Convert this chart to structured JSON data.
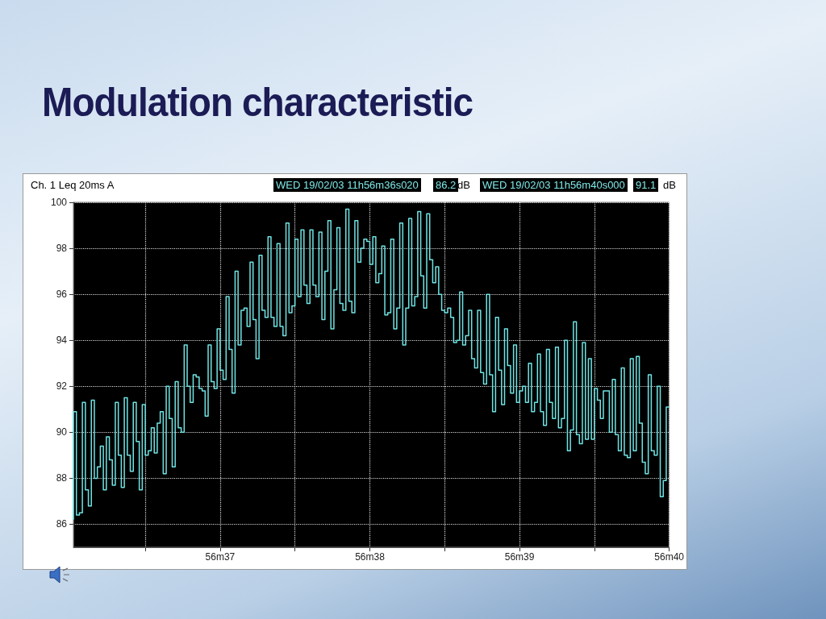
{
  "chart_data": {
    "type": "step",
    "title": "Modulation characteristic",
    "annotations": [
      "Ch.  1  Leq 20ms  A",
      "WED 19/02/03 11h56m36s020",
      "86.2",
      "dB",
      "WED 19/02/03 11h56m40s000",
      "91.1",
      "dB"
    ],
    "categories": [
      null,
      null,
      null,
      null,
      null,
      null,
      null,
      null,
      null,
      null,
      null,
      null,
      null,
      null,
      null,
      null,
      null,
      null,
      null,
      null,
      null,
      null,
      null,
      null,
      null,
      null,
      null,
      null,
      null,
      null,
      null,
      null,
      null,
      null,
      null,
      null,
      null,
      null,
      null,
      null,
      null,
      null,
      null,
      null,
      null,
      null,
      null,
      null,
      null,
      "56m37",
      null,
      null,
      null,
      null,
      null,
      null,
      null,
      null,
      null,
      null,
      null,
      null,
      null,
      null,
      null,
      null,
      null,
      null,
      null,
      null,
      null,
      null,
      null,
      null,
      null,
      null,
      null,
      null,
      null,
      null,
      null,
      null,
      null,
      null,
      null,
      null,
      null,
      null,
      null,
      null,
      null,
      null,
      null,
      null,
      null,
      null,
      null,
      null,
      null,
      "56m38",
      null,
      null,
      null,
      null,
      null,
      null,
      null,
      null,
      null,
      null,
      null,
      null,
      null,
      null,
      null,
      null,
      null,
      null,
      null,
      null,
      null,
      null,
      null,
      null,
      null,
      null,
      null,
      null,
      null,
      null,
      null,
      null,
      null,
      null,
      null,
      null,
      null,
      null,
      null,
      null,
      null,
      null,
      null,
      null,
      null,
      null,
      null,
      null,
      null,
      "56m39",
      null,
      null,
      null,
      null,
      null,
      null,
      null,
      null,
      null,
      null,
      null,
      null,
      null,
      null,
      null,
      null,
      null,
      null,
      null,
      null,
      null,
      null,
      null,
      null,
      null,
      null,
      null,
      null,
      null,
      null,
      null,
      null,
      null,
      null,
      null,
      null,
      null,
      null,
      null,
      null,
      null,
      null,
      null,
      null,
      null,
      null,
      null,
      null,
      null,
      "56m40"
    ],
    "series": [
      {
        "color": "#6fe3e3",
        "values": [
          86.2,
          90.9,
          86.4,
          86.5,
          91.3,
          87.5,
          86.8,
          91.4,
          88.0,
          88.5,
          89.4,
          87.5,
          89.8,
          88.8,
          87.7,
          91.3,
          89.0,
          87.6,
          91.5,
          89.0,
          88.3,
          91.3,
          89.6,
          87.5,
          91.2,
          89.0,
          89.2,
          90.2,
          89.1,
          90.4,
          90.9,
          88.2,
          92.0,
          90.6,
          88.5,
          92.2,
          90.2,
          90.0,
          93.8,
          92.0,
          91.3,
          92.5,
          92.4,
          91.9,
          91.8,
          90.7,
          93.8,
          92.2,
          91.9,
          94.5,
          92.7,
          92.3,
          95.9,
          93.6,
          91.7,
          97.0,
          93.8,
          95.3,
          95.4,
          94.6,
          97.4,
          94.9,
          93.2,
          97.7,
          95.3,
          95.0,
          98.5,
          95.0,
          94.6,
          98.2,
          94.6,
          94.2,
          99.1,
          95.2,
          95.5,
          98.4,
          95.9,
          98.8,
          96.4,
          95.6,
          98.8,
          96.4,
          95.9,
          98.7,
          94.9,
          97.0,
          99.2,
          94.5,
          96.2,
          98.9,
          95.6,
          95.3,
          99.7,
          95.7,
          95.2,
          99.2,
          97.4,
          98.0,
          98.4,
          98.3,
          97.3,
          98.5,
          96.5,
          96.9,
          98.1,
          95.1,
          95.2,
          98.4,
          94.5,
          95.4,
          99.1,
          93.8,
          95.4,
          99.3,
          95.5,
          95.9,
          99.6,
          96.8,
          95.4,
          99.5,
          97.5,
          96.5,
          97.2,
          96.0,
          95.3,
          95.2,
          95.4,
          95.0,
          93.9,
          94.0,
          96.1,
          93.8,
          94.2,
          95.3,
          93.2,
          92.8,
          95.3,
          92.6,
          92.1,
          96.0,
          92.5,
          90.9,
          95.0,
          92.7,
          91.2,
          94.5,
          92.9,
          91.7,
          93.8,
          91.3,
          91.8,
          92.0,
          91.3,
          93.0,
          90.9,
          91.3,
          93.4,
          90.9,
          90.3,
          93.6,
          91.3,
          90.6,
          93.7,
          90.2,
          90.6,
          94.0,
          89.2,
          90.1,
          94.8,
          89.9,
          89.5,
          93.9,
          89.7,
          93.2,
          89.7,
          91.9,
          91.4,
          90.6,
          91.8,
          91.8,
          90.0,
          92.3,
          89.9,
          89.2,
          92.8,
          89.0,
          88.9,
          93.2,
          89.2,
          93.3,
          90.4,
          88.7,
          88.2,
          92.5,
          89.2,
          89.0,
          92.0,
          87.2,
          87.9,
          91.1
        ]
      }
    ],
    "ylim": [
      85,
      100
    ],
    "yticks": [
      86,
      88,
      90,
      92,
      94,
      96,
      98,
      100
    ],
    "grid": true,
    "marker": "none"
  }
}
